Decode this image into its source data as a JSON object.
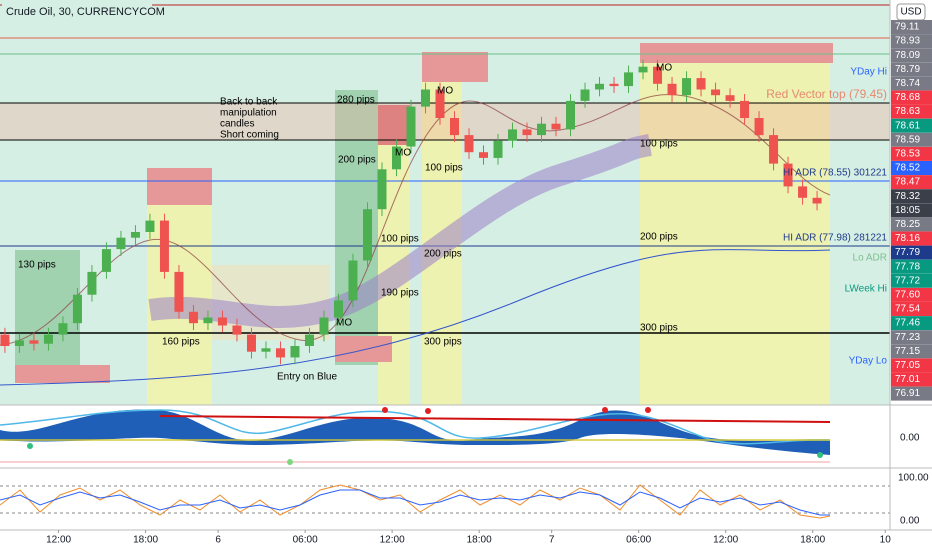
{
  "chart_data": {
    "type": "candlestick",
    "title": "Crude Oil, 30, CURRENCYCOM",
    "currency": "USD",
    "categories": [
      null,
      null,
      null,
      null,
      null,
      null,
      null,
      null,
      null,
      null,
      null,
      null,
      null,
      null,
      null,
      null,
      null,
      null,
      null,
      null,
      null,
      null,
      null,
      null,
      null,
      null,
      null,
      null,
      null,
      null,
      null,
      null,
      null,
      null,
      null,
      null,
      null,
      null,
      null,
      null,
      null,
      null,
      null,
      null,
      null,
      null,
      null,
      null,
      null,
      null,
      null,
      null,
      null,
      null,
      null,
      null,
      null
    ],
    "open": [
      77.2,
      77.1,
      77.15,
      77.12,
      77.2,
      77.3,
      77.55,
      77.75,
      77.95,
      78.05,
      78.1,
      78.2,
      77.75,
      77.4,
      77.3,
      77.35,
      77.28,
      77.2,
      77.05,
      77.08,
      77.0,
      77.1,
      77.2,
      77.35,
      77.5,
      77.85,
      78.3,
      78.65,
      78.85,
      79.2,
      79.35,
      79.1,
      78.95,
      78.8,
      78.75,
      78.9,
      79.0,
      78.95,
      79.05,
      79.0,
      79.25,
      79.35,
      79.4,
      79.38,
      79.5,
      79.55,
      79.4,
      79.3,
      79.45,
      79.35,
      79.3,
      79.25,
      79.1,
      78.95,
      78.7,
      78.5,
      78.4
    ],
    "high": [
      77.26,
      77.21,
      77.21,
      77.26,
      77.36,
      77.61,
      77.81,
      78.01,
      78.11,
      78.16,
      78.26,
      78.26,
      77.81,
      77.46,
      77.41,
      77.41,
      77.34,
      77.26,
      77.14,
      77.14,
      77.16,
      77.26,
      77.41,
      77.56,
      77.91,
      78.36,
      78.71,
      78.91,
      79.26,
      79.41,
      79.41,
      79.16,
      79.01,
      78.86,
      78.96,
      79.06,
      79.06,
      79.11,
      79.11,
      79.31,
      79.41,
      79.46,
      79.46,
      79.56,
      79.61,
      79.61,
      79.46,
      79.51,
      79.51,
      79.41,
      79.36,
      79.31,
      79.16,
      79.01,
      78.76,
      78.56,
      78.46
    ],
    "low": [
      77.04,
      77.04,
      77.06,
      77.06,
      77.14,
      77.24,
      77.49,
      77.69,
      77.89,
      77.99,
      78.04,
      77.69,
      77.34,
      77.24,
      77.24,
      77.22,
      77.14,
      76.99,
      76.99,
      76.94,
      76.94,
      77.04,
      77.14,
      77.29,
      77.44,
      77.79,
      78.24,
      78.59,
      78.79,
      79.14,
      79.04,
      78.89,
      78.74,
      78.69,
      78.69,
      78.84,
      78.89,
      78.89,
      78.94,
      78.94,
      79.19,
      79.29,
      79.32,
      79.32,
      79.44,
      79.34,
      79.24,
      79.24,
      79.29,
      79.24,
      79.19,
      79.04,
      78.89,
      78.64,
      78.44,
      78.34,
      78.29
    ],
    "close": [
      77.1,
      77.15,
      77.12,
      77.2,
      77.3,
      77.55,
      77.75,
      77.95,
      78.05,
      78.1,
      78.2,
      77.75,
      77.4,
      77.3,
      77.35,
      77.28,
      77.2,
      77.05,
      77.08,
      77.0,
      77.1,
      77.2,
      77.35,
      77.5,
      77.85,
      78.3,
      78.65,
      78.85,
      79.2,
      79.35,
      79.1,
      78.95,
      78.8,
      78.75,
      78.9,
      79.0,
      78.95,
      79.05,
      79.0,
      79.25,
      79.35,
      79.4,
      79.38,
      79.5,
      79.55,
      79.4,
      79.3,
      79.45,
      79.35,
      79.3,
      79.25,
      79.1,
      78.95,
      78.7,
      78.5,
      78.4,
      78.35
    ],
    "up_color": "#4caf50",
    "down_color": "#ef5350",
    "ylim": [
      76.6,
      80.1
    ],
    "xlim": [
      -0.34,
      61.03
    ],
    "xticks": [
      {
        "value": 3.7,
        "label": "12:00"
      },
      {
        "value": 9.7,
        "label": "18:00"
      },
      {
        "value": 14.7,
        "label": "6"
      },
      {
        "value": 20.7,
        "label": "06:00"
      },
      {
        "value": 26.7,
        "label": "12:00"
      },
      {
        "value": 32.7,
        "label": "18:00"
      },
      {
        "value": 37.7,
        "label": "7"
      },
      {
        "value": 43.7,
        "label": "06:00"
      },
      {
        "value": 49.7,
        "label": "12:00"
      },
      {
        "value": 55.7,
        "label": "18:00"
      },
      {
        "value": 60.7,
        "label": "10"
      }
    ],
    "price_tags": [
      {
        "label": "79.11",
        "color": "#787b86"
      },
      {
        "label": "78.93",
        "color": "#787b86"
      },
      {
        "label": "78.09",
        "color": "#787b86"
      },
      {
        "label": "78.79",
        "color": "#787b86"
      },
      {
        "label": "78.74",
        "color": "#787b86"
      },
      {
        "label": "78.68",
        "color": "#f23645"
      },
      {
        "label": "78.63",
        "color": "#f23645"
      },
      {
        "label": "78.61",
        "color": "#089981"
      },
      {
        "label": "78.59",
        "color": "#787b86"
      },
      {
        "label": "78.53",
        "color": "#f23645"
      },
      {
        "label": "78.52",
        "color": "#2962ff"
      },
      {
        "label": "78.47",
        "color": "#f23645"
      },
      {
        "label": "78.32",
        "color": "#3b3f4a"
      },
      {
        "label": "18:05",
        "color": "#3b3f4a"
      },
      {
        "label": "78.25",
        "color": "#787b86"
      },
      {
        "label": "78.16",
        "color": "#f23645"
      },
      {
        "label": "77.79",
        "color": "#1e3a8a"
      },
      {
        "label": "77.78",
        "color": "#089981"
      },
      {
        "label": "77.72",
        "color": "#089981"
      },
      {
        "label": "77.60",
        "color": "#f23645"
      },
      {
        "label": "77.54",
        "color": "#f23645"
      },
      {
        "label": "77.46",
        "color": "#089981"
      },
      {
        "label": "77.23",
        "color": "#787b86"
      },
      {
        "label": "77.15",
        "color": "#787b86"
      },
      {
        "label": "77.05",
        "color": "#f23645"
      },
      {
        "label": "77.01",
        "color": "#f23645"
      },
      {
        "label": "76.91",
        "color": "#787b86"
      }
    ],
    "annotations": [
      "Back to back",
      "manipulation",
      "candles",
      "Short coming",
      "280 pips",
      "200 pips",
      "MO",
      "MO",
      "100 pips",
      "130 pips",
      "160 pips",
      "Entry on Blue",
      "MO",
      "100 pips",
      "200 pips",
      "190 pips",
      "300 pips",
      "MO",
      "100 pips",
      "200 pips",
      "300 pips"
    ],
    "line_labels": [
      "YDay Hi",
      "Red Vector top (79.45)",
      "HI ADR (78.55) 301221",
      "HI ADR (77.98) 281221",
      "Lo ADR",
      "LWeek Hi",
      "YDay Lo"
    ],
    "oscillator_labels": [
      "0.00",
      "100.00",
      "0.00"
    ]
  }
}
